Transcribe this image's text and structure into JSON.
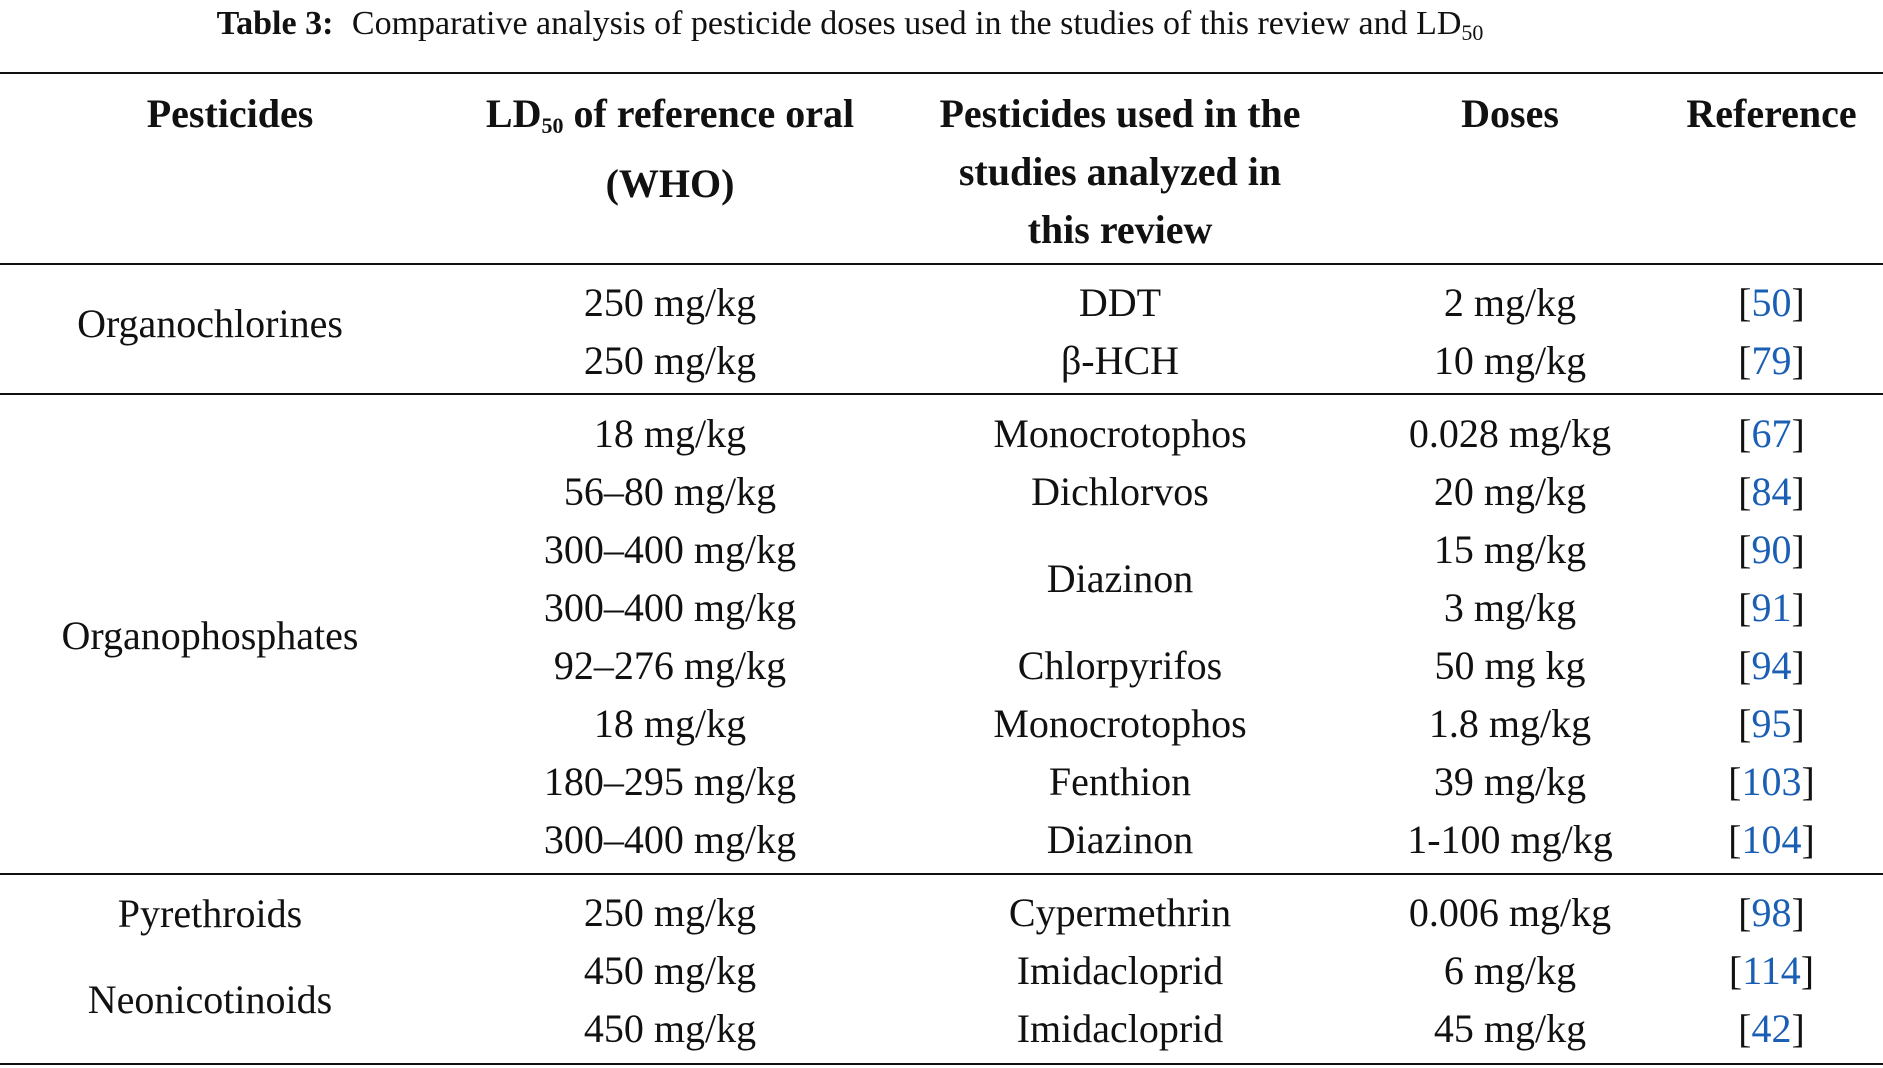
{
  "caption": {
    "label": "Table 3:",
    "text_before": "Comparative analysis of pesticide doses used in the studies of this review and LD",
    "subscript": "50"
  },
  "header": {
    "col1": "Pesticides",
    "col2_main": "LD",
    "col2_sub": "50",
    "col2_rest": " of reference oral",
    "col2_line2": "(WHO)",
    "col3_line1": "Pesticides used in the",
    "col3_line2": "studies analyzed in",
    "col3_line3": "this review",
    "col4": "Doses",
    "col5": "Reference"
  },
  "groups": {
    "organochlorines": "Organochlorines",
    "organophosphates": "Organophosphates",
    "pyrethroids": "Pyrethroids",
    "neonicotinoids": "Neonicotinoids"
  },
  "rows": [
    {
      "ld50": "250 mg/kg",
      "pesticide": "DDT",
      "dose": "2 mg/kg",
      "ref": "50"
    },
    {
      "ld50": "250 mg/kg",
      "pesticide": "β-HCH",
      "dose": "10 mg/kg",
      "ref": "79"
    },
    {
      "ld50": "18 mg/kg",
      "pesticide": "Monocrotophos",
      "dose": "0.028 mg/kg",
      "ref": "67"
    },
    {
      "ld50": "56–80 mg/kg",
      "pesticide": "Dichlorvos",
      "dose": "20 mg/kg",
      "ref": "84"
    },
    {
      "ld50": "300–400 mg/kg",
      "pesticide": "Diazinon",
      "dose": "15 mg/kg",
      "ref": "90"
    },
    {
      "ld50": "300–400 mg/kg",
      "pesticide": "",
      "dose": "3 mg/kg",
      "ref": "91"
    },
    {
      "ld50": "92–276 mg/kg",
      "pesticide": "Chlorpyrifos",
      "dose": "50 mg kg",
      "ref": "94"
    },
    {
      "ld50": "18 mg/kg",
      "pesticide": "Monocrotophos",
      "dose": "1.8 mg/kg",
      "ref": "95"
    },
    {
      "ld50": "180–295 mg/kg",
      "pesticide": "Fenthion",
      "dose": "39 mg/kg",
      "ref": "103"
    },
    {
      "ld50": "300–400 mg/kg",
      "pesticide": "Diazinon",
      "dose": "1-100 mg/kg",
      "ref": "104"
    },
    {
      "ld50": "250 mg/kg",
      "pesticide": "Cypermethrin",
      "dose": "0.006 mg/kg",
      "ref": "98"
    },
    {
      "ld50": "450 mg/kg",
      "pesticide": "Imidacloprid",
      "dose": "6 mg/kg",
      "ref": "114"
    },
    {
      "ld50": "450 mg/kg",
      "pesticide": "Imidacloprid",
      "dose": "45 mg/kg",
      "ref": "42"
    }
  ],
  "colors": {
    "link": "#1a5fb4",
    "text": "#111111"
  }
}
